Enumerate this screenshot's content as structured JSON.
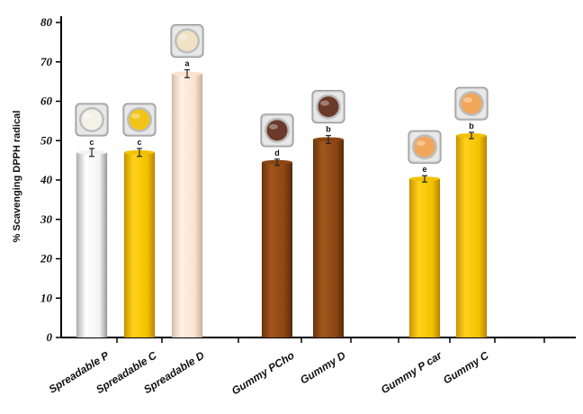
{
  "chart_data": {
    "type": "bar",
    "title": "",
    "xlabel": "",
    "ylabel": "% Scavenging DPPH radical",
    "ylim": [
      0,
      80
    ],
    "yticks": [
      0,
      10,
      20,
      30,
      40,
      50,
      60,
      70,
      80
    ],
    "grid": false,
    "categories": [
      "Spreadable P",
      "Spreadable C",
      "Spreadable D",
      "Gummy PCho",
      "Gummy D",
      "Gummy P  car",
      "Gummy C"
    ],
    "values": [
      47.0,
      47.0,
      67.0,
      44.5,
      50.3,
      40.3,
      51.3
    ],
    "errors": [
      1.0,
      1.0,
      1.0,
      0.8,
      1.0,
      0.8,
      0.8
    ],
    "significance": [
      "c",
      "c",
      "a",
      "d",
      "b",
      "e",
      "b"
    ],
    "colors": {
      "white": "#f2f2f2",
      "yellow": "#f2c200",
      "cream": "#fbe2cf",
      "brown": "#8b4513",
      "sample_white": "#f4f1e6",
      "sample_yellow": "#f0c419",
      "sample_cream": "#f1e2c4",
      "sample_brown": "#6b3a2a",
      "sample_orange": "#f2a65a"
    },
    "bar_colors": [
      "white",
      "yellow",
      "cream",
      "brown",
      "brown",
      "yellow",
      "yellow"
    ],
    "sample_colors": [
      "sample_white",
      "sample_yellow",
      "sample_cream",
      "sample_brown",
      "sample_brown",
      "sample_orange",
      "sample_orange"
    ]
  }
}
